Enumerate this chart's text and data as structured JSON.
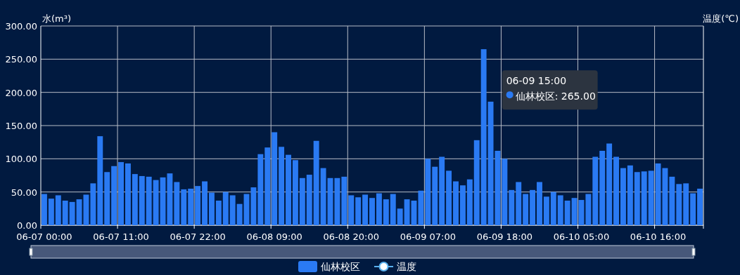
{
  "chart_data": {
    "type": "bar",
    "ylabel": "水(m³)",
    "y2label": "温度(℃)",
    "categories": [
      "06-07 00:00",
      null,
      null,
      null,
      null,
      null,
      null,
      null,
      null,
      null,
      null,
      "06-07 11:00",
      null,
      null,
      null,
      null,
      null,
      null,
      null,
      null,
      null,
      null,
      "06-07 22:00",
      null,
      null,
      null,
      null,
      null,
      null,
      null,
      null,
      null,
      null,
      "06-08 09:00",
      null,
      null,
      null,
      null,
      null,
      null,
      null,
      null,
      null,
      null,
      "06-08 20:00",
      null,
      null,
      null,
      null,
      null,
      null,
      null,
      null,
      null,
      null,
      "06-09 07:00",
      null,
      null,
      null,
      null,
      null,
      null,
      null,
      null,
      null,
      null,
      "06-09 18:00",
      null,
      null,
      null,
      null,
      null,
      null,
      null,
      null,
      null,
      null,
      "06-10 05:00",
      null,
      null,
      null,
      null,
      null,
      null,
      null,
      null,
      null,
      null,
      "06-10 16:00",
      null,
      null,
      null,
      null,
      null,
      null
    ],
    "series": [
      {
        "name": "仙林校区",
        "color": "#2a7af3",
        "values": [
          47,
          40,
          45,
          37,
          35,
          39,
          46,
          63,
          134,
          80,
          89,
          95,
          93,
          77,
          74,
          73,
          68,
          72,
          78,
          65,
          54,
          55,
          59,
          66,
          49,
          37,
          50,
          45,
          32,
          47,
          57,
          107,
          117,
          140,
          118,
          106,
          98,
          71,
          76,
          127,
          86,
          71,
          71,
          73,
          45,
          42,
          46,
          41,
          48,
          39,
          47,
          25,
          39,
          37,
          52,
          100,
          88,
          103,
          82,
          66,
          60,
          69,
          128,
          265,
          186,
          112,
          100,
          53,
          65,
          47,
          53,
          65,
          43,
          50,
          45,
          37,
          41,
          38,
          47,
          103,
          112,
          123,
          103,
          86,
          90,
          80,
          81,
          82,
          93,
          86,
          73,
          62,
          63,
          48,
          55
        ]
      },
      {
        "name": "温度",
        "type": "line",
        "axis": "y2",
        "color": "#5ab1ef",
        "marker": "circle",
        "values": [
          null,
          null,
          null,
          null,
          null,
          null,
          null,
          null,
          null,
          null,
          null,
          null,
          null,
          null,
          null,
          null,
          null,
          null,
          null,
          null,
          null,
          null,
          null,
          null,
          null,
          null,
          null,
          null,
          null,
          null,
          null,
          null,
          null,
          null,
          null,
          null,
          null,
          null,
          null,
          null,
          null,
          null,
          null,
          null,
          null,
          null,
          null,
          null,
          null,
          null,
          null,
          null,
          null,
          null,
          null,
          null,
          null,
          null,
          null,
          null,
          null,
          null,
          null,
          null,
          null,
          null,
          null,
          null,
          null,
          null,
          null,
          null,
          null,
          null,
          null,
          null,
          null,
          null,
          null,
          null,
          null,
          null,
          null,
          null,
          null,
          null,
          null,
          null,
          null,
          null,
          null,
          null,
          null,
          null,
          null
        ]
      }
    ],
    "ylim": [
      0,
      300
    ],
    "yticks": [
      {
        "value": 0,
        "label": "0.00"
      },
      {
        "value": 50,
        "label": "50.00"
      },
      {
        "value": 100,
        "label": "100.00"
      },
      {
        "value": 150,
        "label": "150.00"
      },
      {
        "value": 200,
        "label": "200.00"
      },
      {
        "value": 250,
        "label": "250.00"
      },
      {
        "value": 300,
        "label": "300.00"
      }
    ],
    "annotations": [
      "06-09 15:00",
      "仙林校区: 265.00"
    ],
    "grid": true,
    "legend": "bottom"
  }
}
